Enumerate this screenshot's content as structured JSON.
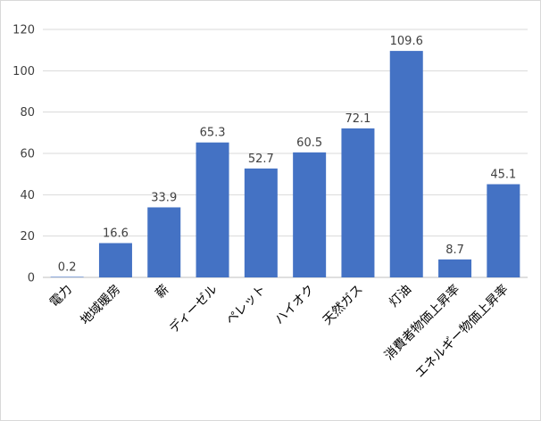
{
  "chart_data": {
    "type": "bar",
    "categories": [
      "電力",
      "地域暖房",
      "薪",
      "ディーゼル",
      "ペレット",
      "ハイオク",
      "天然ガス",
      "灯油",
      "消費者物価上昇率",
      "エネルギー物価上昇率"
    ],
    "values": [
      0.2,
      16.6,
      33.9,
      65.3,
      52.7,
      60.5,
      72.1,
      109.6,
      8.7,
      45.1
    ],
    "value_labels": [
      "0.2",
      "16.6",
      "33.9",
      "65.3",
      "52.7",
      "60.5",
      "72.1",
      "109.6",
      "8.7",
      "45.1"
    ],
    "yticks": [
      "0",
      "20",
      "40",
      "60",
      "80",
      "100",
      "120"
    ],
    "ylim": [
      0,
      120
    ],
    "bar_color": "#4472C4",
    "grid": true,
    "legend": "none"
  }
}
